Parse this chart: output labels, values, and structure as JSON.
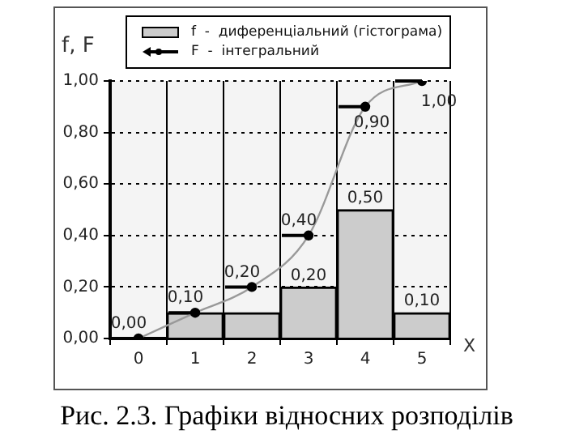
{
  "chart_data": {
    "type": "bar",
    "ylabel": "f, F",
    "xlabel": "X",
    "annotations": [
      "Рис. 2.3. Графіки відносних розподілів"
    ],
    "categories": [
      "0",
      "1",
      "2",
      "3",
      "4",
      "5"
    ],
    "series": [
      {
        "name": "f  -  диференціальний (гістограма)",
        "color": "#cccccc",
        "values": [
          0,
          0.1,
          0.1,
          0.2,
          0.5,
          0.1
        ],
        "value_labels": [
          null,
          null,
          null,
          "0,20",
          "0,50",
          "0,10"
        ]
      },
      {
        "type": "line",
        "name": "F  -  інтегральний",
        "color": "#999999",
        "values": [
          0,
          0.1,
          0.2,
          0.4,
          0.9,
          1.0
        ],
        "value_labels": [
          "0,00",
          "0,10",
          "0,20",
          "0,40",
          "0,90",
          "1,00"
        ]
      }
    ],
    "ylim": [
      0,
      1
    ],
    "yticks": [
      {
        "value": 0,
        "label": "0,00"
      },
      {
        "value": 0.2,
        "label": "0,20"
      },
      {
        "value": 0.4,
        "label": "0,40"
      },
      {
        "value": 0.6,
        "label": "0,60"
      },
      {
        "value": 0.8,
        "label": "0,80"
      },
      {
        "value": 1,
        "label": "1,00"
      }
    ],
    "grid": true,
    "legend": "top",
    "marker": "circle",
    "line_style": "solid"
  }
}
